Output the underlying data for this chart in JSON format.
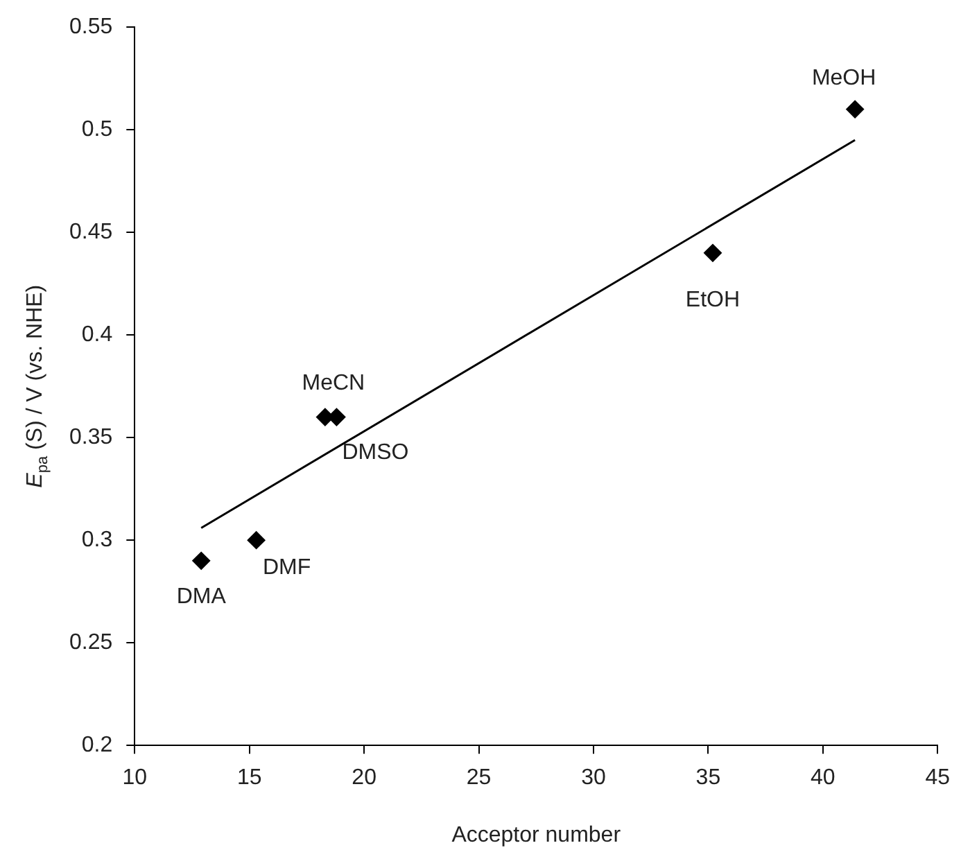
{
  "chart_data": {
    "type": "scatter",
    "xlabel": "Acceptor number",
    "ylabel": "E$_{pa}$ (S) / V (vs. NHE)",
    "series": [
      {
        "color": "#000000",
        "marker": "diamond",
        "x": [
          12.9,
          15.3,
          18.3,
          18.8,
          35.2,
          41.4
        ],
        "values": [
          0.29,
          0.3,
          0.36,
          0.36,
          0.44,
          0.51
        ]
      },
      {
        "type": "line",
        "color": "#000000",
        "marker": "none",
        "line_style": "solid",
        "x": [
          12.9,
          41.4
        ],
        "values": [
          0.306,
          0.495
        ]
      }
    ],
    "xlim": [
      10,
      45
    ],
    "xticks": [
      10,
      15,
      20,
      25,
      30,
      35,
      40,
      45
    ],
    "ylim": [
      0.2,
      0.55
    ],
    "yticks": [
      0.2,
      0.25,
      0.3,
      0.35,
      0.4,
      0.45,
      0.5,
      0.55
    ],
    "grid": false,
    "legend": false,
    "annotations": [
      {
        "text": "DMA",
        "x": 12.9,
        "y": 0.29
      },
      {
        "text": "DMF",
        "x": 15.3,
        "y": 0.3
      },
      {
        "text": "MeCN",
        "x": 18.3,
        "y": 0.36
      },
      {
        "text": "DMSO",
        "x": 18.8,
        "y": 0.36
      },
      {
        "text": "EtOH",
        "x": 35.2,
        "y": 0.44
      },
      {
        "text": "MeOH",
        "x": 41.4,
        "y": 0.51
      }
    ]
  }
}
